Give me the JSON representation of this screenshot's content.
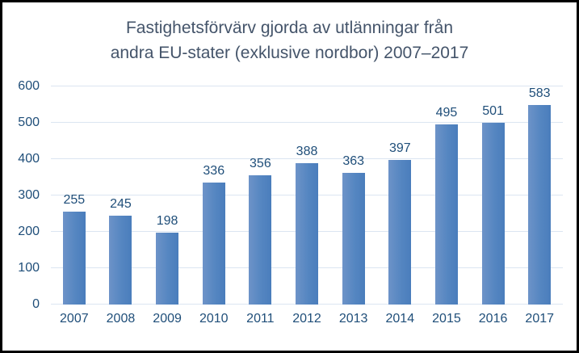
{
  "title": {
    "line1": "Fastighetsförvärv gjorda av utlänningar från",
    "line2": "andra EU-stater (exklusive nordbor) 2007–2017"
  },
  "chart_data": {
    "type": "bar",
    "title": "Fastighetsförvärv gjorda av utlänningar från andra EU-stater (exklusive nordbor) 2007–2017",
    "categories": [
      "2007",
      "2008",
      "2009",
      "2010",
      "2011",
      "2012",
      "2013",
      "2014",
      "2015",
      "2016",
      "2017"
    ],
    "values": [
      255,
      245,
      198,
      336,
      356,
      388,
      363,
      397,
      495,
      501,
      583
    ],
    "xlabel": "",
    "ylabel": "",
    "ylim": [
      0,
      600
    ],
    "yticks": [
      0,
      100,
      200,
      300,
      400,
      500,
      600
    ],
    "grid": true,
    "legend": false,
    "data_labels": true
  },
  "colors": {
    "bar_gradient_left": "#6d93c8",
    "bar_gradient_right": "#4a7dbc",
    "gridline": "#dbe5f1",
    "title_text": "#44546a",
    "label_text": "#1f4e79",
    "frame_border": "#000000",
    "background": "#ffffff"
  }
}
